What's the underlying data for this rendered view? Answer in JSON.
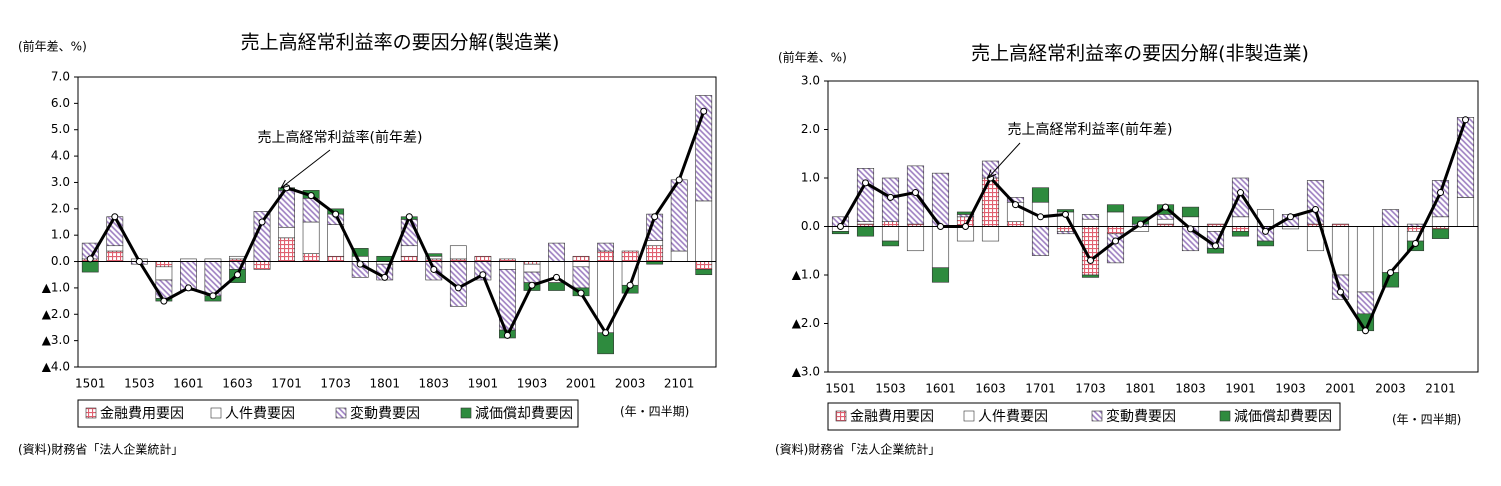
{
  "chart_data": [
    {
      "type": "bar",
      "title": "売上高経常利益率の要因分解(製造業)",
      "y_unit": "(前年差、%)",
      "x_unit": "(年・四半期)",
      "source": "(資料)財務省「法人企業統計」",
      "categories": [
        "1501",
        null,
        "1503",
        null,
        "1601",
        null,
        "1603",
        null,
        "1701",
        null,
        "1703",
        null,
        "1801",
        null,
        "1803",
        null,
        "1901",
        null,
        "1903",
        null,
        "2001",
        null,
        "2003",
        null,
        "2101",
        null
      ],
      "ylim": [
        -4,
        7
      ],
      "yticks": [
        {
          "value": 7,
          "label": "7.0"
        },
        {
          "value": 6,
          "label": "6.0"
        },
        {
          "value": 5,
          "label": "5.0"
        },
        {
          "value": 4,
          "label": "4.0"
        },
        {
          "value": 3,
          "label": "3.0"
        },
        {
          "value": 2,
          "label": "2.0"
        },
        {
          "value": 1,
          "label": "1.0"
        },
        {
          "value": 0,
          "label": "0.0"
        },
        {
          "value": -1,
          "label": "▲1.0"
        },
        {
          "value": -2,
          "label": "▲2.0"
        },
        {
          "value": -3,
          "label": "▲3.0"
        },
        {
          "value": -4,
          "label": "▲4.0"
        }
      ],
      "series": [
        {
          "name": "金融費用要因",
          "color": "#e06070",
          "pattern": "grid",
          "values": [
            0.1,
            0.4,
            0,
            -0.2,
            0,
            0,
            0.1,
            -0.3,
            0.9,
            0.3,
            0.2,
            0,
            0,
            0.2,
            0.1,
            0.1,
            0.2,
            0.1,
            -0.1,
            0,
            0.2,
            0.4,
            0.4,
            0.6,
            0,
            -0.3
          ]
        },
        {
          "name": "人件費要因",
          "color": "#ffffff",
          "pattern": "solid",
          "values": [
            0,
            0.2,
            0.1,
            -0.5,
            0.1,
            0.1,
            0.1,
            0,
            0.4,
            1.2,
            1.2,
            0.2,
            -0.1,
            0.4,
            0.1,
            0.5,
            0,
            -0.3,
            -0.3,
            -0.8,
            -0.2,
            -2.7,
            -0.9,
            0.2,
            0.4,
            2.3
          ]
        },
        {
          "name": "変動費要因",
          "color": "#9b7cc0",
          "pattern": "hatch",
          "values": [
            0.6,
            1.1,
            -0.1,
            -0.7,
            -1.1,
            -1.3,
            -0.3,
            1.9,
            1.4,
            0.9,
            0.4,
            -0.6,
            -0.6,
            1.0,
            -0.7,
            -1.7,
            -0.7,
            -2.3,
            -0.4,
            0.7,
            -0.8,
            0.3,
            0,
            1.0,
            2.7,
            4.0
          ]
        },
        {
          "name": "減価償却費要因",
          "color": "#2e8b3e",
          "pattern": "solid",
          "values": [
            -0.4,
            0,
            0,
            -0.1,
            0,
            -0.2,
            -0.5,
            0,
            0.1,
            0.3,
            0.2,
            0.3,
            0.2,
            0.1,
            0.1,
            0,
            0,
            -0.3,
            -0.3,
            -0.3,
            -0.3,
            -0.8,
            -0.3,
            -0.1,
            0,
            -0.2
          ]
        }
      ],
      "line": {
        "label": "売上高経常利益率(前年差)",
        "color": "#000000",
        "values": [
          0.1,
          1.7,
          0,
          -1.5,
          -1.0,
          -1.3,
          -0.5,
          1.5,
          2.8,
          2.5,
          1.8,
          -0.1,
          -0.6,
          1.7,
          -0.3,
          -1.0,
          -0.5,
          -2.8,
          -0.9,
          -0.6,
          -1.2,
          -2.7,
          -0.9,
          1.7,
          3.1,
          5.7
        ]
      }
    },
    {
      "type": "bar",
      "title": "売上高経常利益率の要因分解(非製造業)",
      "y_unit": "(前年差、%)",
      "x_unit": "(年・四半期)",
      "source": "(資料)財務省「法人企業統計」",
      "categories": [
        "1501",
        null,
        "1503",
        null,
        "1601",
        null,
        "1603",
        null,
        "1701",
        null,
        "1703",
        null,
        "1801",
        null,
        "1803",
        null,
        "1901",
        null,
        "1903",
        null,
        "2001",
        null,
        "2003",
        null,
        "2101",
        null
      ],
      "ylim": [
        -3,
        3
      ],
      "yticks": [
        {
          "value": 3,
          "label": "3.0"
        },
        {
          "value": 2,
          "label": "2.0"
        },
        {
          "value": 1,
          "label": "1.0"
        },
        {
          "value": 0,
          "label": "0.0"
        },
        {
          "value": -1,
          "label": "▲1.0"
        },
        {
          "value": -2,
          "label": "▲2.0"
        },
        {
          "value": -3,
          "label": "▲3.0"
        }
      ],
      "series": [
        {
          "name": "金融費用要因",
          "color": "#e06070",
          "pattern": "grid",
          "values": [
            0,
            0.05,
            0.1,
            0.05,
            0,
            0.2,
            1.0,
            0.1,
            0,
            -0.1,
            -1.0,
            -0.15,
            0,
            0.05,
            0,
            0.05,
            -0.1,
            0,
            0,
            0.05,
            0.05,
            0,
            0,
            -0.1,
            -0.05,
            0
          ]
        },
        {
          "name": "人件費要因",
          "color": "#ffffff",
          "pattern": "solid",
          "values": [
            -0.1,
            0.05,
            -0.3,
            -0.5,
            -0.85,
            -0.3,
            -0.3,
            0.4,
            0.5,
            0.3,
            0.15,
            0.3,
            -0.1,
            0.1,
            0.2,
            -0.1,
            0.2,
            0.35,
            -0.05,
            -0.5,
            -1.0,
            -1.35,
            -0.95,
            -0.2,
            0.2,
            0.6
          ]
        },
        {
          "name": "変動費要因",
          "color": "#9b7cc0",
          "pattern": "hatch",
          "values": [
            0.2,
            1.1,
            0.9,
            1.2,
            1.1,
            0.05,
            0.35,
            0.1,
            -0.6,
            -0.05,
            0.1,
            -0.6,
            0.05,
            0.1,
            -0.5,
            -0.35,
            0.8,
            -0.3,
            0.25,
            0.9,
            -0.5,
            -0.45,
            0.35,
            0.05,
            0.75,
            1.65
          ]
        },
        {
          "name": "減価償却費要因",
          "color": "#2e8b3e",
          "pattern": "solid",
          "values": [
            -0.05,
            -0.2,
            -0.1,
            0,
            -0.3,
            0.05,
            0,
            0,
            0.3,
            0.05,
            -0.05,
            0.15,
            0.15,
            0.2,
            0.2,
            -0.1,
            -0.1,
            -0.1,
            0,
            0,
            0,
            -0.35,
            -0.3,
            -0.2,
            -0.2,
            0
          ]
        }
      ],
      "line": {
        "label": "売上高経常利益率(前年差)",
        "color": "#000000",
        "values": [
          0,
          0.9,
          0.6,
          0.7,
          0,
          0,
          1.0,
          0.45,
          0.2,
          0.25,
          -0.7,
          -0.3,
          0.05,
          0.4,
          -0.05,
          -0.4,
          0.7,
          -0.1,
          0.2,
          0.35,
          -1.35,
          -2.15,
          -0.95,
          -0.35,
          0.7,
          2.2
        ]
      }
    }
  ]
}
